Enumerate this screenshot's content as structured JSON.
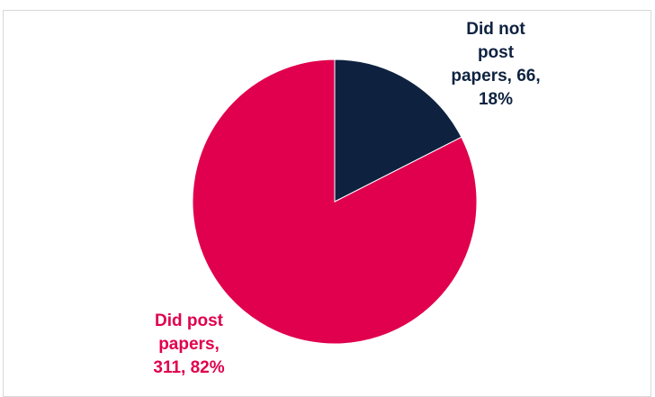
{
  "chart_data": {
    "type": "pie",
    "title": "",
    "slices": [
      {
        "label": "Did not post papers",
        "value": 66,
        "percent": "18%",
        "color": "#0e2240",
        "label_lines": [
          "Did not",
          "post",
          "papers, 66,",
          "18%"
        ]
      },
      {
        "label": "Did post papers",
        "value": 311,
        "percent": "82%",
        "color": "#e0004d",
        "label_lines": [
          "Did post",
          "papers,",
          "311, 82%"
        ]
      }
    ],
    "start_angle_deg": 0,
    "direction": "clockwise",
    "legend": "none",
    "data_labels": "outside-end"
  }
}
